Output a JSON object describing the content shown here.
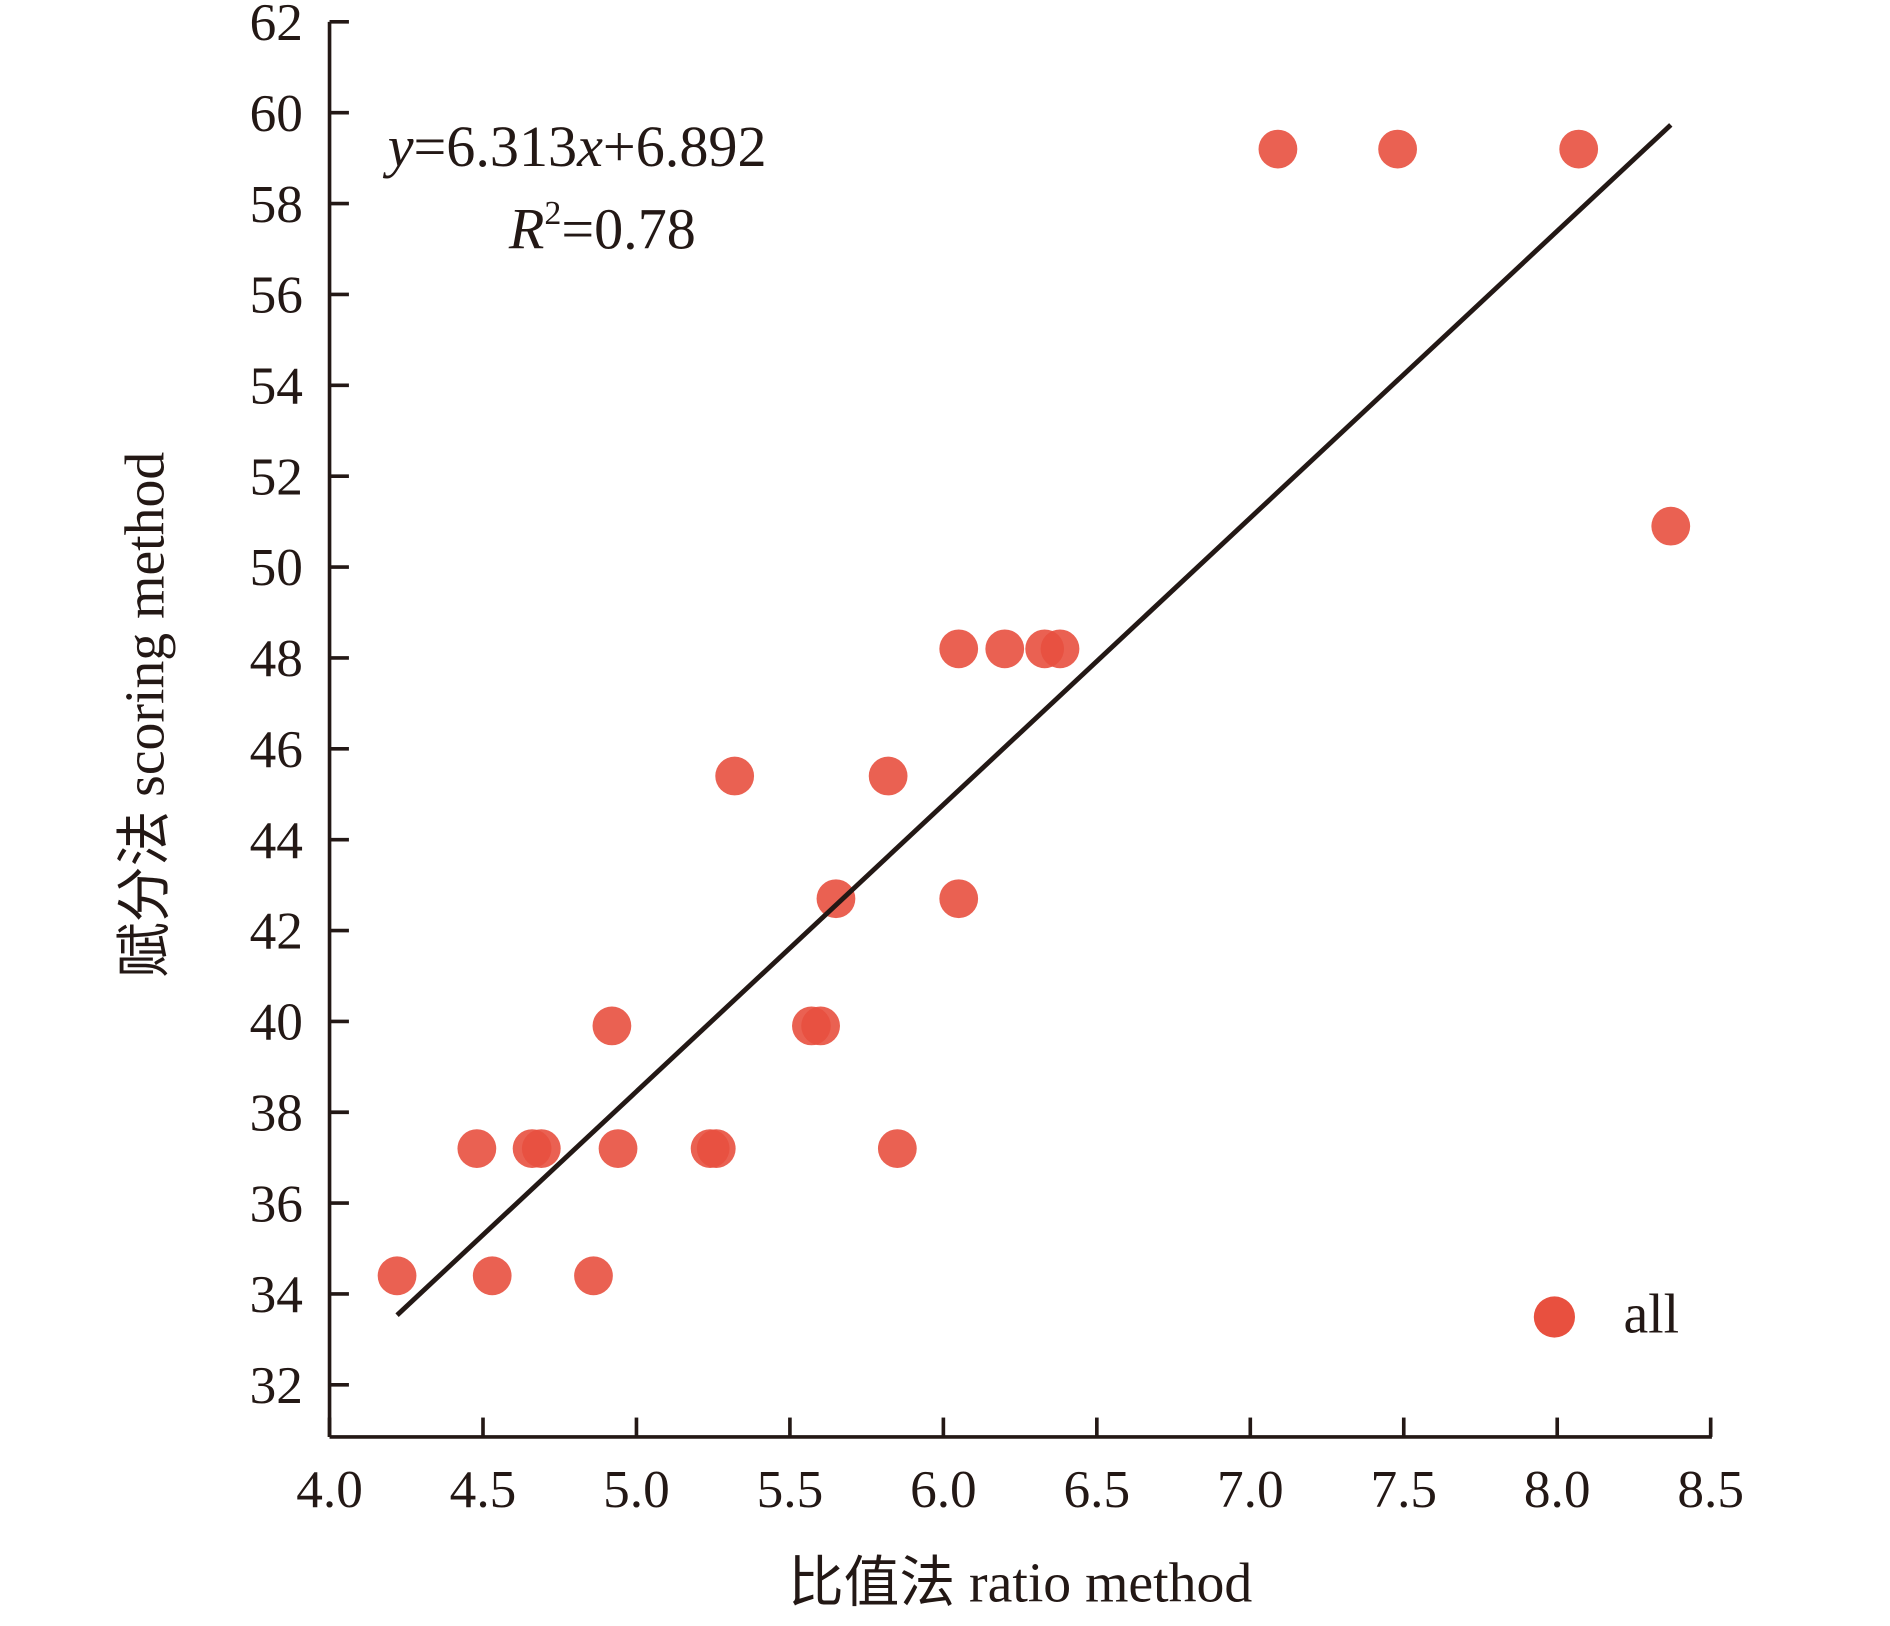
{
  "chart_data": {
    "type": "scatter",
    "title": "",
    "xlabel": "比值法 ratio method",
    "ylabel": "赋分法 scoring method",
    "xlim": [
      4.0,
      8.5
    ],
    "ylim": [
      31,
      62
    ],
    "xticks": [
      "4.0",
      "4.5",
      "5.0",
      "5.5",
      "6.0",
      "6.5",
      "7.0",
      "7.5",
      "8.0",
      "8.5"
    ],
    "yticks": [
      "32",
      "34",
      "36",
      "38",
      "40",
      "42",
      "44",
      "46",
      "48",
      "50",
      "52",
      "54",
      "56",
      "58",
      "60",
      "62"
    ],
    "grid": false,
    "legend": {
      "position": "bottom-right",
      "entries": [
        "all"
      ]
    },
    "series": [
      {
        "name": "all",
        "color": "#e8503f",
        "points": [
          [
            7.09,
            59.2
          ],
          [
            7.48,
            59.2
          ],
          [
            8.07,
            59.2
          ],
          [
            8.37,
            50.9
          ],
          [
            6.05,
            48.2
          ],
          [
            6.2,
            48.2
          ],
          [
            6.33,
            48.2
          ],
          [
            6.38,
            48.2
          ],
          [
            5.32,
            45.4
          ],
          [
            5.82,
            45.4
          ],
          [
            5.65,
            42.7
          ],
          [
            6.05,
            42.7
          ],
          [
            4.92,
            39.9
          ],
          [
            5.57,
            39.9
          ],
          [
            5.6,
            39.9
          ],
          [
            4.48,
            37.2
          ],
          [
            4.66,
            37.2
          ],
          [
            4.69,
            37.2
          ],
          [
            4.94,
            37.2
          ],
          [
            5.24,
            37.2
          ],
          [
            5.26,
            37.2
          ],
          [
            5.85,
            37.2
          ],
          [
            4.22,
            34.4
          ],
          [
            4.53,
            34.4
          ],
          [
            4.86,
            34.4
          ]
        ]
      }
    ],
    "fit": {
      "slope": 6.313,
      "intercept": 6.892,
      "x_range": [
        4.22,
        8.37
      ],
      "equation_text": "y=6.313x+6.892",
      "r2_label": "R",
      "r2_text": "=0.78"
    }
  }
}
